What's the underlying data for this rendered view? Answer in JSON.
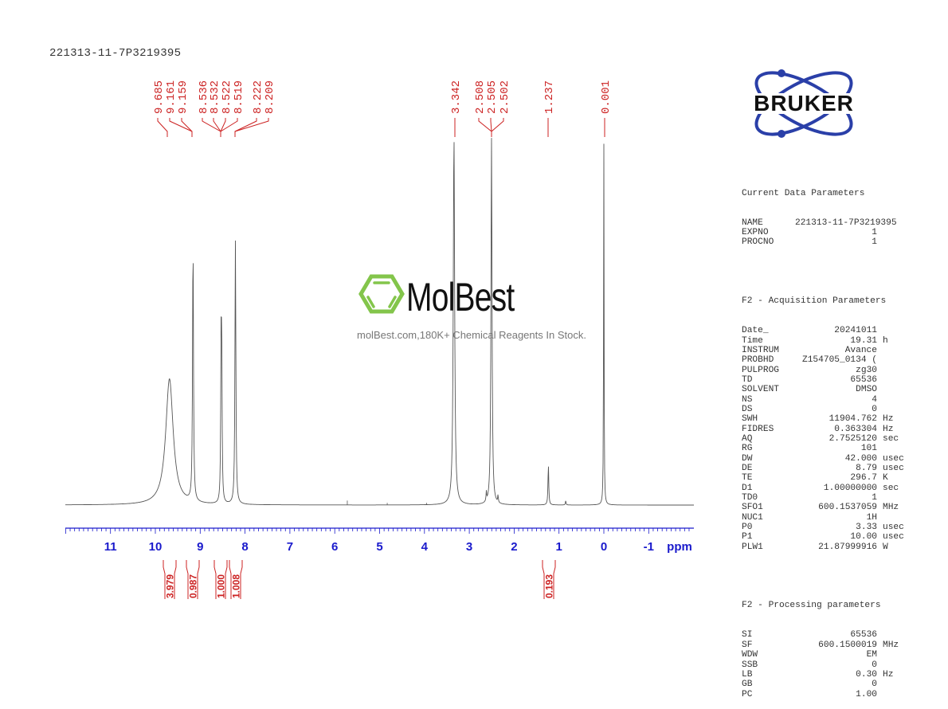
{
  "header": {
    "sample_name": "221313-11-7P3219395"
  },
  "peak_labels": {
    "group1": [
      "9.685",
      "9.161",
      "9.159",
      "8.536",
      "8.532",
      "8.522",
      "8.519",
      "8.222",
      "8.209"
    ],
    "group2": [
      "3.342",
      "2.508",
      "2.505",
      "2.502",
      "1.237",
      "0.001"
    ]
  },
  "integrals": [
    {
      "value": "3.979",
      "center_ppm": 9.68
    },
    {
      "value": "0.987",
      "center_ppm": 9.16
    },
    {
      "value": "1.000",
      "center_ppm": 8.53
    },
    {
      "value": "1.008",
      "center_ppm": 8.21
    },
    {
      "value": "0.193",
      "center_ppm": 1.24
    }
  ],
  "axis": {
    "unit_label": "ppm",
    "ticks": [
      "11",
      "10",
      "9",
      "8",
      "7",
      "6",
      "5",
      "4",
      "3",
      "2",
      "1",
      "0",
      "-1"
    ],
    "color": "#0000cc"
  },
  "colors": {
    "peak_label": "#cc2222",
    "spectrum": "#555555",
    "axis": "#1a1acc",
    "integral": "#cc2222",
    "bruker_blue": "#2a3fa8",
    "molbest_green": "#7dc242"
  },
  "logo": {
    "bruker_text": "BRUKER"
  },
  "watermark": {
    "brand": "MolBest",
    "tagline": "molBest.com,180K+ Chemical Reagents In Stock."
  },
  "parameters": {
    "current": {
      "title": "Current Data Parameters",
      "rows": [
        {
          "k": "NAME",
          "v": "221313-11-7P3219395",
          "u": ""
        },
        {
          "k": "EXPNO",
          "v": "1",
          "u": ""
        },
        {
          "k": "PROCNO",
          "v": "1",
          "u": ""
        }
      ]
    },
    "acquisition": {
      "title": "F2 - Acquisition Parameters",
      "rows": [
        {
          "k": "Date_",
          "v": "20241011",
          "u": ""
        },
        {
          "k": "Time",
          "v": "19.31",
          "u": "h"
        },
        {
          "k": "INSTRUM",
          "v": "Avance",
          "u": ""
        },
        {
          "k": "PROBHD",
          "v": "Z154705_0134 (",
          "u": ""
        },
        {
          "k": "PULPROG",
          "v": "zg30",
          "u": ""
        },
        {
          "k": "TD",
          "v": "65536",
          "u": ""
        },
        {
          "k": "SOLVENT",
          "v": "DMSO",
          "u": ""
        },
        {
          "k": "NS",
          "v": "4",
          "u": ""
        },
        {
          "k": "DS",
          "v": "0",
          "u": ""
        },
        {
          "k": "SWH",
          "v": "11904.762",
          "u": "Hz"
        },
        {
          "k": "FIDRES",
          "v": "0.363304",
          "u": "Hz"
        },
        {
          "k": "AQ",
          "v": "2.7525120",
          "u": "sec"
        },
        {
          "k": "RG",
          "v": "101",
          "u": ""
        },
        {
          "k": "DW",
          "v": "42.000",
          "u": "usec"
        },
        {
          "k": "DE",
          "v": "8.79",
          "u": "usec"
        },
        {
          "k": "TE",
          "v": "296.7",
          "u": "K"
        },
        {
          "k": "D1",
          "v": "1.00000000",
          "u": "sec"
        },
        {
          "k": "TD0",
          "v": "1",
          "u": ""
        },
        {
          "k": "SFO1",
          "v": "600.1537059",
          "u": "MHz"
        },
        {
          "k": "NUC1",
          "v": "1H",
          "u": ""
        },
        {
          "k": "P0",
          "v": "3.33",
          "u": "usec"
        },
        {
          "k": "P1",
          "v": "10.00",
          "u": "usec"
        },
        {
          "k": "PLW1",
          "v": "21.87999916",
          "u": "W"
        }
      ]
    },
    "processing": {
      "title": "F2 - Processing parameters",
      "rows": [
        {
          "k": "SI",
          "v": "65536",
          "u": ""
        },
        {
          "k": "SF",
          "v": "600.1500019",
          "u": "MHz"
        },
        {
          "k": "WDW",
          "v": "EM",
          "u": ""
        },
        {
          "k": "SSB",
          "v": "0",
          "u": ""
        },
        {
          "k": "LB",
          "v": "0.30",
          "u": "Hz"
        },
        {
          "k": "GB",
          "v": "0",
          "u": ""
        },
        {
          "k": "PC",
          "v": "1.00",
          "u": ""
        }
      ]
    }
  },
  "chart_data": {
    "type": "line",
    "title": "221313-11-7P3219395",
    "xlabel": "ppm",
    "ylabel": "",
    "xlim": [
      12.0,
      -2.0
    ],
    "x_reversed": true,
    "grid": false,
    "x_ticks": [
      11,
      10,
      9,
      8,
      7,
      6,
      5,
      4,
      3,
      2,
      1,
      0,
      -1
    ],
    "peaks": [
      {
        "ppm": 9.685,
        "rel_intensity": 0.34,
        "width": 0.1
      },
      {
        "ppm": 9.16,
        "rel_intensity": 0.7,
        "width": 0.012
      },
      {
        "ppm": 8.534,
        "rel_intensity": 0.39,
        "width": 0.01
      },
      {
        "ppm": 8.52,
        "rel_intensity": 0.36,
        "width": 0.01
      },
      {
        "ppm": 8.215,
        "rel_intensity": 0.71,
        "width": 0.012
      },
      {
        "ppm": 3.342,
        "rel_intensity": 1.0,
        "width": 0.018
      },
      {
        "ppm": 2.505,
        "rel_intensity": 0.99,
        "width": 0.014
      },
      {
        "ppm": 2.62,
        "rel_intensity": 0.025,
        "width": 0.008
      },
      {
        "ppm": 2.36,
        "rel_intensity": 0.02,
        "width": 0.008
      },
      {
        "ppm": 1.237,
        "rel_intensity": 0.11,
        "width": 0.01
      },
      {
        "ppm": 0.85,
        "rel_intensity": 0.012,
        "width": 0.008
      },
      {
        "ppm": 0.001,
        "rel_intensity": 1.0,
        "width": 0.006
      }
    ],
    "peak_labels_ppm": [
      9.685,
      9.161,
      9.159,
      8.536,
      8.532,
      8.522,
      8.519,
      8.222,
      8.209,
      3.342,
      2.508,
      2.505,
      2.502,
      1.237,
      0.001
    ],
    "integrals": [
      {
        "range_ppm": [
          9.85,
          9.55
        ],
        "value": 3.979
      },
      {
        "range_ppm": [
          9.25,
          9.08
        ],
        "value": 0.987
      },
      {
        "range_ppm": [
          8.6,
          8.45
        ],
        "value": 1.0
      },
      {
        "range_ppm": [
          8.3,
          8.13
        ],
        "value": 1.008
      },
      {
        "range_ppm": [
          1.32,
          1.15
        ],
        "value": 0.193
      }
    ]
  }
}
